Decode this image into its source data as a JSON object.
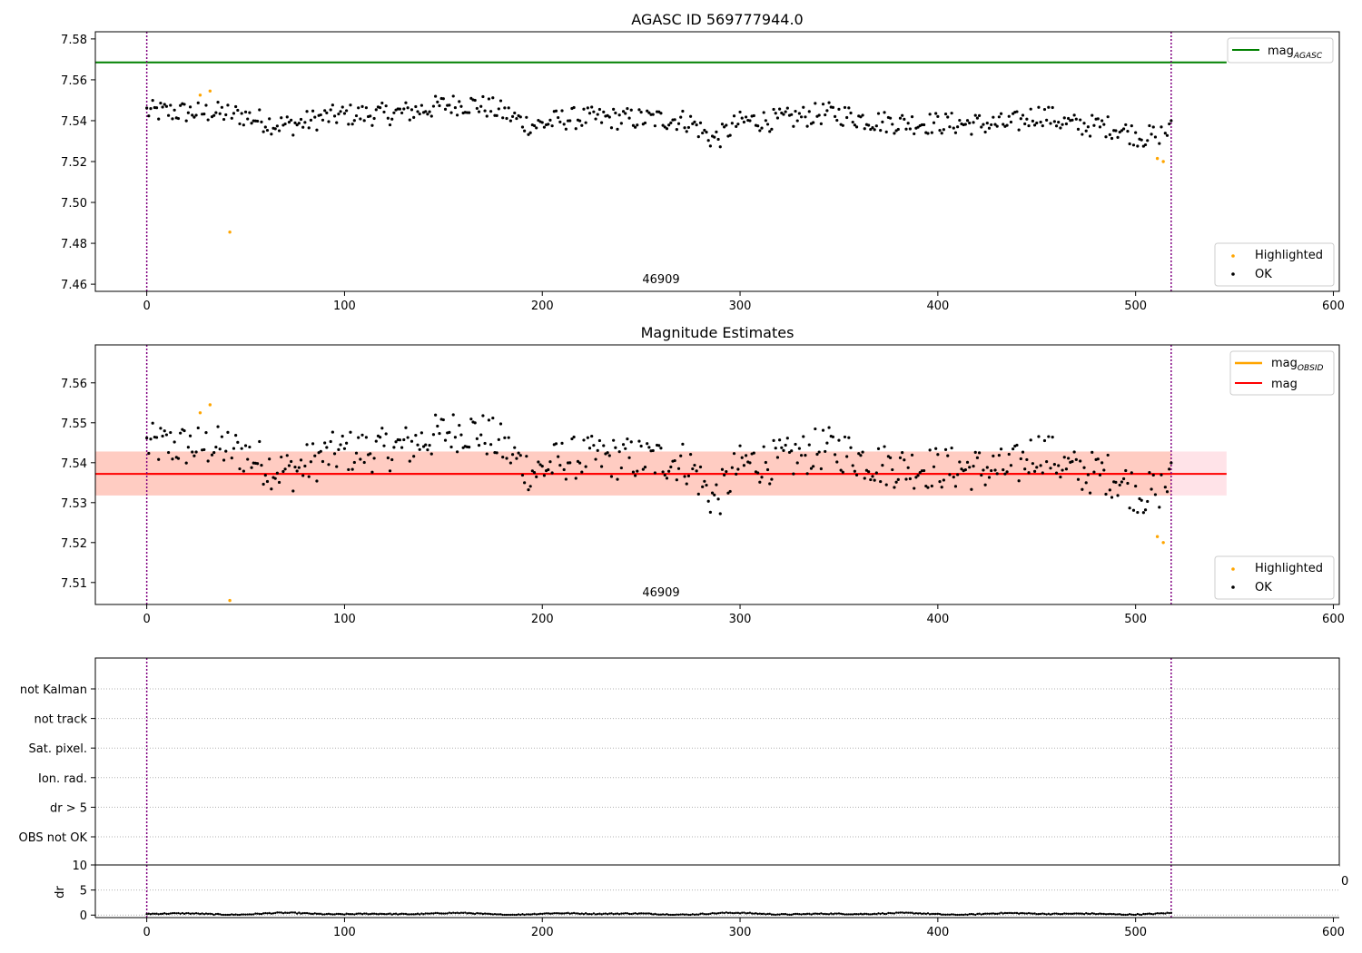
{
  "colors": {
    "ok": "#000000",
    "highlighted": "#ffa500",
    "mag_agasc": "#008000",
    "mag_obsid": "#ffa500",
    "mag_mean": "#ff0000",
    "band_outer": "#ffc0cb",
    "band_inner": "#ffa07a",
    "obs_boundary": "#800080",
    "grid": "#b0b0b0"
  },
  "panels": {
    "top": {
      "title": "AGASC ID 569777944.0",
      "obsid_label": "46909",
      "legend_lines": [
        {
          "label": "mag",
          "subscript": "AGASC"
        }
      ],
      "legend_points": [
        {
          "label": "Highlighted"
        },
        {
          "label": "OK"
        }
      ],
      "xticks": [
        "0",
        "100",
        "200",
        "300",
        "400",
        "500",
        "600"
      ],
      "yticks": [
        "7.46",
        "7.48",
        "7.50",
        "7.52",
        "7.54",
        "7.56",
        "7.58"
      ]
    },
    "middle": {
      "title": "Magnitude Estimates",
      "obsid_label": "46909",
      "legend_lines": [
        {
          "label": "mag",
          "subscript": "OBSID"
        },
        {
          "label": "mag",
          "subscript": ""
        }
      ],
      "legend_points": [
        {
          "label": "Highlighted"
        },
        {
          "label": "OK"
        }
      ],
      "xticks": [
        "0",
        "100",
        "200",
        "300",
        "400",
        "500",
        "600"
      ],
      "yticks": [
        "7.51",
        "7.52",
        "7.53",
        "7.54",
        "7.55",
        "7.56"
      ]
    },
    "flags": {
      "labels": [
        "not Kalman",
        "not track",
        "Sat. pixel.",
        "Ion. rad.",
        "dr > 5",
        "OBS not OK"
      ]
    },
    "dr": {
      "ylabel": "dr",
      "yticks": [
        "0",
        "5",
        "10"
      ],
      "xticks": [
        "0",
        "100",
        "200",
        "300",
        "400",
        "500",
        "600"
      ],
      "clipped_label": "0"
    }
  },
  "chart_data": [
    {
      "type": "scatter",
      "title": "AGASC ID 569777944.0",
      "xlim": [
        -26,
        603
      ],
      "ylim": [
        7.4565,
        7.5835
      ],
      "legend": "upper right (lines), lower right (points)",
      "obs_boundaries_x": [
        0,
        518
      ],
      "obsid": "46909",
      "mag_agasc": 7.5685,
      "mag_agasc_x_range": [
        -26,
        546
      ],
      "series": [
        {
          "name": "OK",
          "color": "black",
          "n_points": 519,
          "x_range": [
            0,
            518
          ],
          "y_approx_range": [
            7.524,
            7.552
          ],
          "trend": "~7.545 at start, ~7.538 mid, ~7.530 near end"
        },
        {
          "name": "Highlighted",
          "color": "orange",
          "points": [
            [
              27,
              7.5525
            ],
            [
              32,
              7.5545
            ],
            [
              42,
              7.4855
            ],
            [
              511,
              7.5215
            ],
            [
              514,
              7.52
            ]
          ]
        }
      ]
    },
    {
      "type": "scatter",
      "title": "Magnitude Estimates",
      "xlim": [
        -26,
        603
      ],
      "ylim": [
        7.5045,
        7.5695
      ],
      "legend": "upper right (lines), lower right (points)",
      "obs_boundaries_x": [
        0,
        518
      ],
      "obsid": "46909",
      "mag_obsid": 7.5372,
      "mag": 7.5372,
      "band_outer": [
        7.5318,
        7.5428
      ],
      "band_inner": [
        7.5318,
        7.5428
      ],
      "series": [
        {
          "name": "OK",
          "color": "black",
          "n_points": 519,
          "x_range": [
            0,
            518
          ],
          "y_approx_range": [
            7.524,
            7.552
          ]
        },
        {
          "name": "Highlighted",
          "color": "orange",
          "points": [
            [
              27,
              7.5525
            ],
            [
              32,
              7.5545
            ],
            [
              42,
              7.5055
            ],
            [
              511,
              7.5215
            ],
            [
              514,
              7.52
            ]
          ]
        }
      ]
    },
    {
      "type": "scatter",
      "xlim": [
        -26,
        603
      ],
      "categories": [
        "not Kalman",
        "not track",
        "Sat. pixel.",
        "Ion. rad.",
        "dr > 5",
        "OBS not OK"
      ],
      "grid": true,
      "flagged_points": []
    },
    {
      "type": "scatter",
      "ylabel": "dr",
      "xlim": [
        -26,
        603
      ],
      "ylim": [
        -0.5,
        10
      ],
      "n_points": 519,
      "y_approx_range": [
        0.1,
        0.7
      ]
    }
  ]
}
